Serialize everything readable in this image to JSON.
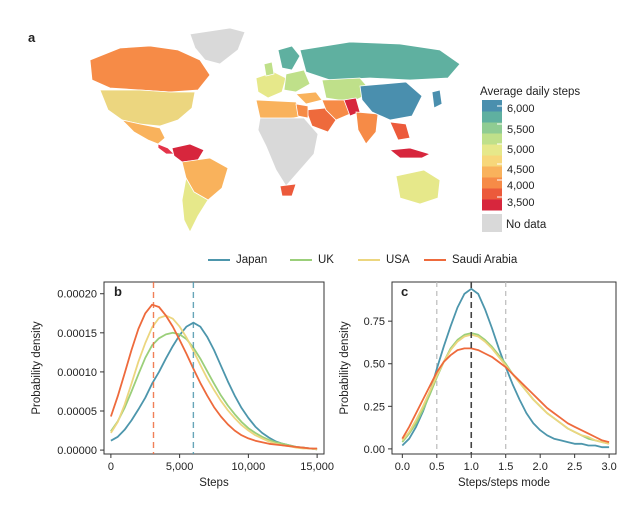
{
  "panels": {
    "a": "a",
    "b": "b",
    "c": "c"
  },
  "map": {
    "legend_title": "Average daily steps",
    "legend_ticks": [
      "6,000",
      "5,500",
      "5,000",
      "4,500",
      "4,000",
      "3,500"
    ],
    "no_data_label": "No data",
    "color_scale": [
      "#d7263d",
      "#ec5a3b",
      "#f68b47",
      "#f9b25c",
      "#f7d77a",
      "#e6e88a",
      "#bfe08a",
      "#8fcc92",
      "#5fb0a0",
      "#4a8fae"
    ],
    "no_data_color": "#d9d9d9"
  },
  "series_colors": {
    "Japan": "#4d96ac",
    "UK": "#9bcf7a",
    "USA": "#ecd67f",
    "Saudi Arabia": "#ee6a3c"
  },
  "chart_data": [
    {
      "type": "line",
      "panel": "b",
      "xlabel": "Steps",
      "ylabel": "Probability density",
      "xlim": [
        -500,
        15500
      ],
      "ylim": [
        -5e-06,
        0.000215
      ],
      "xticks": [
        "0",
        "5,000",
        "10,000",
        "15,000"
      ],
      "xtick_values": [
        0,
        5000,
        10000,
        15000
      ],
      "yticks": [
        "0.00000",
        "0.00005",
        "0.00010",
        "0.00015",
        "0.00020"
      ],
      "ytick_values": [
        0,
        5e-05,
        0.0001,
        0.00015,
        0.0002
      ],
      "vlines": [
        {
          "x": 3100,
          "series": "Saudi Arabia"
        },
        {
          "x": 6000,
          "series": "Japan"
        }
      ],
      "x": [
        0,
        500,
        1000,
        1500,
        2000,
        2500,
        3000,
        3500,
        4000,
        4500,
        5000,
        5500,
        6000,
        6500,
        7000,
        7500,
        8000,
        8500,
        9000,
        9500,
        10000,
        10500,
        11000,
        11500,
        12000,
        12500,
        13000,
        13500,
        14000,
        14500,
        15000
      ],
      "series": [
        {
          "name": "Japan",
          "values": [
            1.2e-05,
            1.7e-05,
            2.6e-05,
            3.8e-05,
            5.2e-05,
            6.7e-05,
            8.5e-05,
            0.0001,
            0.000117,
            0.000133,
            0.000147,
            0.000158,
            0.000163,
            0.000158,
            0.000145,
            0.000128,
            0.000108,
            8.8e-05,
            7e-05,
            5.4e-05,
            4.1e-05,
            3e-05,
            2.2e-05,
            1.6e-05,
            1.1e-05,
            8e-06,
            6e-06,
            4e-06,
            3e-06,
            2e-06,
            1e-06
          ]
        },
        {
          "name": "UK",
          "values": [
            2.4e-05,
            3.7e-05,
            5.4e-05,
            7.5e-05,
            9.7e-05,
            0.000118,
            0.000134,
            0.000143,
            0.000148,
            0.00015,
            0.000148,
            0.000142,
            0.000131,
            0.000117,
            0.000101,
            8.5e-05,
            7e-05,
            5.7e-05,
            4.6e-05,
            3.6e-05,
            2.8e-05,
            2.2e-05,
            1.7e-05,
            1.3e-05,
            1e-05,
            8e-06,
            6e-06,
            4e-06,
            3e-06,
            2e-06,
            1e-06
          ]
        },
        {
          "name": "USA",
          "values": [
            2.2e-05,
            3.6e-05,
            5.8e-05,
            8.5e-05,
            0.000113,
            0.000137,
            0.000157,
            0.000169,
            0.000172,
            0.000168,
            0.000158,
            0.000144,
            0.000127,
            0.000109,
            9.2e-05,
            7.7e-05,
            6.3e-05,
            5.1e-05,
            4.1e-05,
            3.2e-05,
            2.5e-05,
            1.9e-05,
            1.5e-05,
            1.1e-05,
            8e-06,
            6e-06,
            5e-06,
            3e-06,
            2e-06,
            2e-06,
            1e-06
          ]
        },
        {
          "name": "Saudi Arabia",
          "values": [
            4.3e-05,
            6.9e-05,
            9.8e-05,
            0.000128,
            0.000155,
            0.000175,
            0.000186,
            0.000183,
            0.000172,
            0.000158,
            0.000141,
            0.000123,
            0.000104,
            8.6e-05,
            7e-05,
            5.5e-05,
            4.3e-05,
            3.3e-05,
            2.5e-05,
            1.9e-05,
            1.5e-05,
            1.2e-05,
            1e-05,
            8e-06,
            7e-06,
            6e-06,
            5e-06,
            4e-06,
            3e-06,
            2e-06,
            2e-06
          ]
        }
      ]
    },
    {
      "type": "line",
      "panel": "c",
      "xlabel": "Steps/steps mode",
      "ylabel": "Probability density",
      "xlim": [
        -0.15,
        3.1
      ],
      "ylim": [
        -0.03,
        0.98
      ],
      "xticks": [
        "0.0",
        "0.5",
        "1.0",
        "1.5",
        "2.0",
        "2.5",
        "3.0"
      ],
      "xtick_values": [
        0,
        0.5,
        1,
        1.5,
        2,
        2.5,
        3
      ],
      "yticks": [
        "0.00",
        "0.25",
        "0.50",
        "0.75"
      ],
      "ytick_values": [
        0,
        0.25,
        0.5,
        0.75
      ],
      "vlines_gray": [
        0.5,
        1.5
      ],
      "vline_mode": 1.0,
      "x": [
        0,
        0.1,
        0.2,
        0.3,
        0.4,
        0.5,
        0.6,
        0.7,
        0.8,
        0.9,
        1.0,
        1.1,
        1.2,
        1.3,
        1.4,
        1.5,
        1.6,
        1.7,
        1.8,
        1.9,
        2.0,
        2.1,
        2.2,
        2.3,
        2.4,
        2.5,
        2.6,
        2.7,
        2.8,
        2.9,
        3.0
      ],
      "series": [
        {
          "name": "Japan",
          "values": [
            0.02,
            0.06,
            0.13,
            0.22,
            0.33,
            0.47,
            0.6,
            0.72,
            0.83,
            0.91,
            0.94,
            0.91,
            0.82,
            0.71,
            0.59,
            0.48,
            0.38,
            0.29,
            0.21,
            0.15,
            0.11,
            0.08,
            0.06,
            0.05,
            0.04,
            0.03,
            0.03,
            0.02,
            0.02,
            0.01,
            0.01
          ]
        },
        {
          "name": "UK",
          "values": [
            0.04,
            0.09,
            0.15,
            0.23,
            0.32,
            0.42,
            0.51,
            0.59,
            0.64,
            0.67,
            0.68,
            0.67,
            0.64,
            0.6,
            0.55,
            0.5,
            0.44,
            0.39,
            0.34,
            0.29,
            0.25,
            0.21,
            0.18,
            0.15,
            0.12,
            0.1,
            0.08,
            0.06,
            0.05,
            0.04,
            0.03
          ]
        },
        {
          "name": "USA",
          "values": [
            0.05,
            0.1,
            0.17,
            0.25,
            0.34,
            0.43,
            0.51,
            0.58,
            0.63,
            0.66,
            0.67,
            0.66,
            0.63,
            0.59,
            0.54,
            0.49,
            0.44,
            0.39,
            0.34,
            0.29,
            0.25,
            0.21,
            0.18,
            0.15,
            0.12,
            0.1,
            0.08,
            0.07,
            0.05,
            0.04,
            0.03
          ]
        },
        {
          "name": "Saudi Arabia",
          "values": [
            0.06,
            0.13,
            0.21,
            0.29,
            0.37,
            0.45,
            0.51,
            0.55,
            0.58,
            0.59,
            0.59,
            0.58,
            0.56,
            0.54,
            0.51,
            0.48,
            0.44,
            0.4,
            0.36,
            0.32,
            0.28,
            0.24,
            0.21,
            0.18,
            0.15,
            0.13,
            0.11,
            0.09,
            0.07,
            0.05,
            0.04
          ]
        }
      ]
    }
  ]
}
